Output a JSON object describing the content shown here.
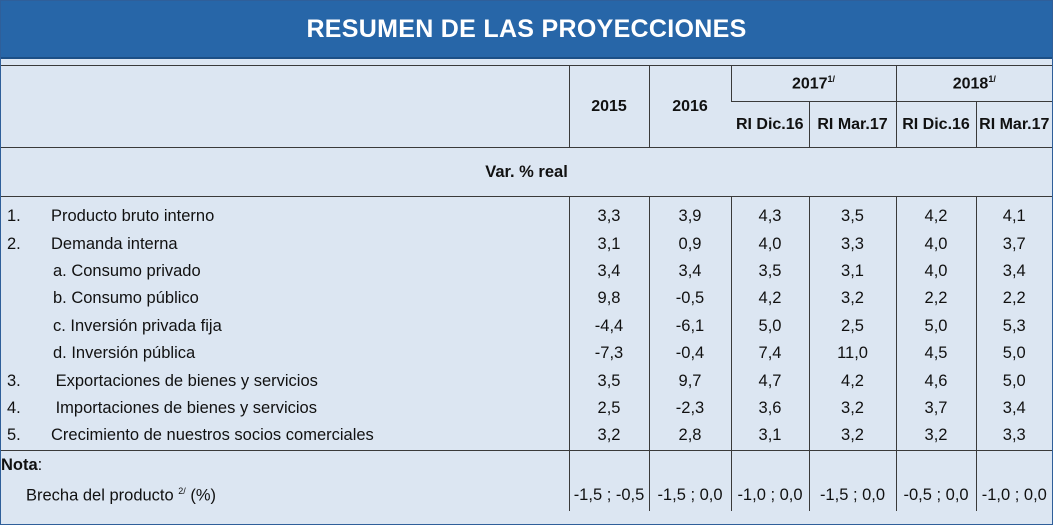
{
  "title": "RESUMEN DE LAS PROYECCIONES",
  "header": {
    "y2015": "2015",
    "y2016": "2016",
    "y2017": "2017",
    "y2017_note": "1/",
    "y2018": "2018",
    "y2018_note": "1/",
    "sub_dic": "RI Dic.16",
    "sub_mar": "RI Mar.17"
  },
  "unit_label": "Var. % real",
  "rows": [
    {
      "num": "1.",
      "label": "Producto bruto interno",
      "values": [
        "3,3",
        "3,9",
        "4,3",
        "3,5",
        "4,2",
        "4,1"
      ]
    },
    {
      "num": "2.",
      "label": "Demanda interna",
      "values": [
        "3,1",
        "0,9",
        "4,0",
        "3,3",
        "4,0",
        "3,7"
      ]
    },
    {
      "num": "",
      "label": "a. Consumo privado",
      "values": [
        "3,4",
        "3,4",
        "3,5",
        "3,1",
        "4,0",
        "3,4"
      ]
    },
    {
      "num": "",
      "label": "b. Consumo público",
      "values": [
        "9,8",
        "-0,5",
        "4,2",
        "3,2",
        "2,2",
        "2,2"
      ]
    },
    {
      "num": "",
      "label": "c. Inversión privada fija",
      "values": [
        "-4,4",
        "-6,1",
        "5,0",
        "2,5",
        "5,0",
        "5,3"
      ]
    },
    {
      "num": "",
      "label": "d. Inversión pública",
      "values": [
        "-7,3",
        "-0,4",
        "7,4",
        "11,0",
        "4,5",
        "5,0"
      ]
    },
    {
      "num": "3.",
      "label": " Exportaciones de bienes y servicios",
      "values": [
        "3,5",
        "9,7",
        "4,7",
        "4,2",
        "4,6",
        "5,0"
      ]
    },
    {
      "num": "4.",
      "label": " Importaciones de bienes y servicios",
      "values": [
        "2,5",
        "-2,3",
        "3,6",
        "3,2",
        "3,7",
        "3,4"
      ]
    },
    {
      "num": "5.",
      "label": "Crecimiento de nuestros socios comerciales",
      "values": [
        "3,2",
        "2,8",
        "3,1",
        "3,2",
        "3,2",
        "3,3"
      ]
    }
  ],
  "nota": {
    "label": "Nota",
    "colon": ":",
    "brecha_label": "Brecha del producto",
    "brecha_note": "2/",
    "brecha_unit": "(%)",
    "brecha_values": [
      "-1,5 ; -0,5",
      "-1,5 ; 0,0",
      "-1,0 ; 0,0",
      "-1,5 ; 0,0",
      "-0,5 ; 0,0",
      "-1,0 ; 0,0"
    ]
  }
}
